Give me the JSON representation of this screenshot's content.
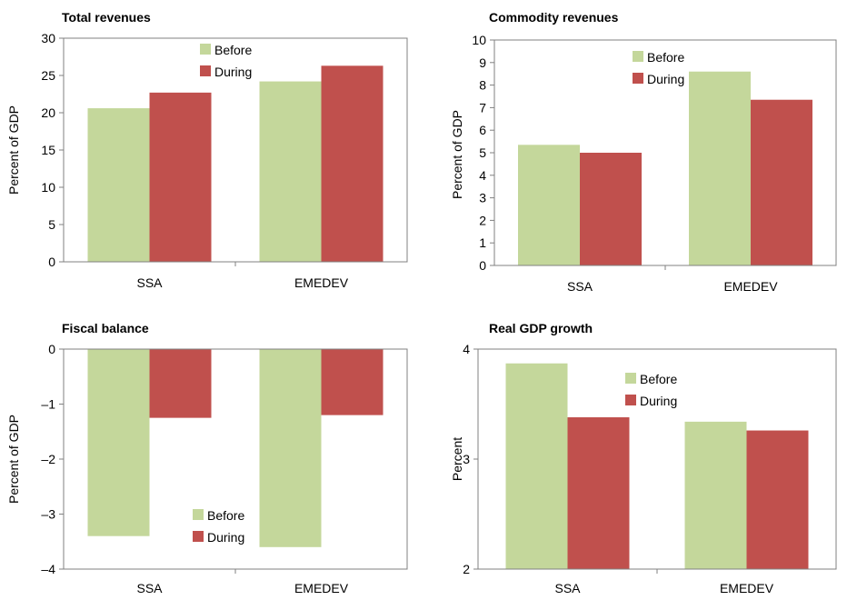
{
  "colors": {
    "before": "#c4d79b",
    "during": "#c0504d",
    "axis": "#808080"
  },
  "chart_data": [
    {
      "type": "bar",
      "title": "Total revenues",
      "ylabel": "Percent of GDP",
      "categories": [
        "SSA",
        "EMEDEV"
      ],
      "ylim": [
        0,
        30
      ],
      "yticks": [
        0,
        5,
        10,
        15,
        20,
        25,
        30
      ],
      "ytick_labels": [
        "0",
        "5",
        "10",
        "15",
        "20",
        "25",
        "30"
      ],
      "legend_position": "top-center",
      "series": [
        {
          "name": "Before",
          "values": [
            20.6,
            24.2
          ]
        },
        {
          "name": "During",
          "values": [
            22.7,
            26.3
          ]
        }
      ]
    },
    {
      "type": "bar",
      "title": "Commodity revenues",
      "ylabel": "Percent of GDP",
      "categories": [
        "SSA",
        "EMEDEV"
      ],
      "ylim": [
        0,
        10
      ],
      "yticks": [
        0,
        1,
        2,
        3,
        4,
        5,
        6,
        7,
        8,
        9,
        10
      ],
      "ytick_labels": [
        "0",
        "1",
        "2",
        "3",
        "4",
        "5",
        "6",
        "7",
        "8",
        "9",
        "10"
      ],
      "legend_position": "top-center",
      "series": [
        {
          "name": "Before",
          "values": [
            5.35,
            8.6
          ]
        },
        {
          "name": "During",
          "values": [
            5.0,
            7.35
          ]
        }
      ]
    },
    {
      "type": "bar",
      "title": "Fiscal balance",
      "ylabel": "Percent of GDP",
      "categories": [
        "SSA",
        "EMEDEV"
      ],
      "ylim": [
        -4,
        0
      ],
      "yticks": [
        0,
        -1,
        -2,
        -3,
        -4
      ],
      "ytick_labels": [
        "0",
        "–1",
        "–2",
        "–3",
        "–4"
      ],
      "legend_position": "bottom-center",
      "series": [
        {
          "name": "Before",
          "values": [
            -3.4,
            -3.6
          ]
        },
        {
          "name": "During",
          "values": [
            -1.25,
            -1.2
          ]
        }
      ]
    },
    {
      "type": "bar",
      "title": "Real GDP growth",
      "ylabel": "Percent",
      "categories": [
        "SSA",
        "EMEDEV"
      ],
      "ylim": [
        2,
        4
      ],
      "yticks": [
        2,
        3,
        4
      ],
      "ytick_labels": [
        "2",
        "3",
        "4"
      ],
      "legend_position": "top-right",
      "series": [
        {
          "name": "Before",
          "values": [
            3.87,
            3.34
          ]
        },
        {
          "name": "During",
          "values": [
            3.38,
            3.26
          ]
        }
      ]
    }
  ]
}
